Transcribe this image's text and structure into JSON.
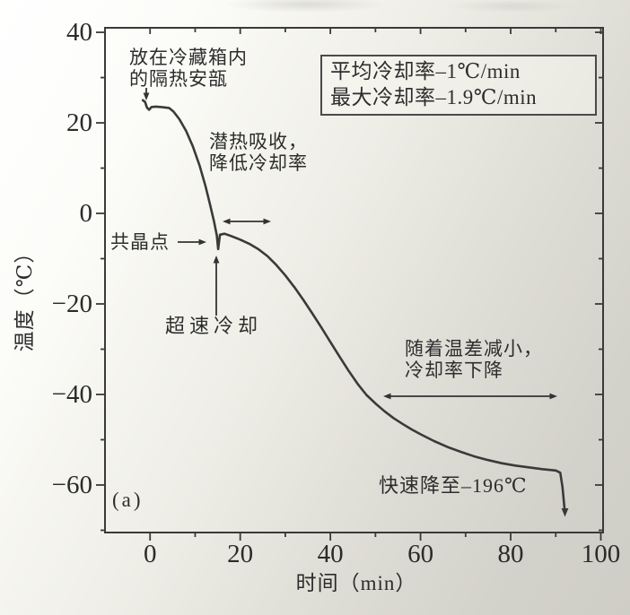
{
  "figure": {
    "panel_label": "(a)",
    "x_axis_title": "时间（min）",
    "y_axis_title": "温度（℃）"
  },
  "legend": {
    "lines": [
      "平均冷却率–1℃/min",
      "最大冷却率–1.9℃/min"
    ]
  },
  "annotations": {
    "ampoule": {
      "lines": [
        "放在冷藏箱内",
        "的隔热安瓿"
      ]
    },
    "latent_heat": {
      "lines": [
        "潜热吸收，",
        "降低冷却率"
      ]
    },
    "eutectic": {
      "label": "共晶点"
    },
    "rapid_cooling": {
      "label": "超速冷却"
    },
    "temp_diff": {
      "lines": [
        "随着温差减小，",
        "冷却率下降"
      ]
    },
    "final_drop": {
      "label": "快速降至–196℃"
    }
  },
  "colors": {
    "curve": "#3a3a3a",
    "axis": "#3a3a3a",
    "text": "#2d2d2d",
    "background_light": "#ffffff",
    "background_dark": "#cfcec6"
  },
  "chart_data": {
    "type": "line",
    "title": "",
    "xlabel": "时间（min）",
    "ylabel": "温度（℃）",
    "xlim": [
      -10,
      100.5
    ],
    "ylim": [
      -70.5,
      41
    ],
    "x_ticks": [
      0,
      20,
      40,
      60,
      80,
      100
    ],
    "x_minor_ticks": [
      10,
      30,
      50,
      70,
      90
    ],
    "y_ticks": [
      40,
      20,
      0,
      -20,
      -40,
      -60
    ],
    "y_minor_ticks": [
      30,
      10,
      -10,
      -30,
      -50,
      -70
    ],
    "grid": false,
    "legend_position": "upper right",
    "series": [
      {
        "name": "cooling-curve",
        "points": [
          [
            -1.6,
            25.0
          ],
          [
            -1.1,
            24.6
          ],
          [
            -0.7,
            23.4
          ],
          [
            -0.2,
            22.9
          ],
          [
            0.3,
            23.5
          ],
          [
            1.2,
            23.6
          ],
          [
            2.5,
            23.5
          ],
          [
            4.2,
            23.3
          ],
          [
            5.2,
            22.5
          ],
          [
            6.5,
            20.8
          ],
          [
            8,
            18.2
          ],
          [
            9.5,
            14.8
          ],
          [
            11,
            10.5
          ],
          [
            12.3,
            6.0
          ],
          [
            13.3,
            2.0
          ],
          [
            14.2,
            -1.8
          ],
          [
            14.8,
            -4.9
          ],
          [
            15.1,
            -7.9
          ],
          [
            15.5,
            -4.7
          ],
          [
            16.5,
            -4.5
          ],
          [
            18,
            -5.0
          ],
          [
            20,
            -5.8
          ],
          [
            22,
            -6.7
          ],
          [
            24,
            -7.9
          ],
          [
            26,
            -9.4
          ],
          [
            28,
            -11.4
          ],
          [
            30,
            -13.7
          ],
          [
            32,
            -16.3
          ],
          [
            34,
            -19.1
          ],
          [
            36,
            -22.1
          ],
          [
            38,
            -25.2
          ],
          [
            40,
            -28.4
          ],
          [
            42,
            -31.6
          ],
          [
            44,
            -34.7
          ],
          [
            46,
            -37.6
          ],
          [
            48,
            -40.1
          ],
          [
            50,
            -42.0
          ],
          [
            52,
            -43.7
          ],
          [
            54,
            -45.2
          ],
          [
            56,
            -46.5
          ],
          [
            58,
            -47.7
          ],
          [
            60,
            -48.8
          ],
          [
            63,
            -50.3
          ],
          [
            66,
            -51.6
          ],
          [
            69,
            -52.7
          ],
          [
            72,
            -53.7
          ],
          [
            75,
            -54.5
          ],
          [
            78,
            -55.2
          ],
          [
            81,
            -55.7
          ],
          [
            84,
            -56.1
          ],
          [
            87,
            -56.5
          ],
          [
            90,
            -56.8
          ],
          [
            91,
            -57.3
          ],
          [
            91.5,
            -60.5
          ],
          [
            92,
            -65.8
          ]
        ]
      }
    ],
    "key_values": {
      "average_cooling_rate": "–1 ℃/min",
      "max_cooling_rate": "–1.9 ℃/min",
      "eutectic_point_temp_c": -7.9,
      "final_target_temp_c": -196
    }
  }
}
